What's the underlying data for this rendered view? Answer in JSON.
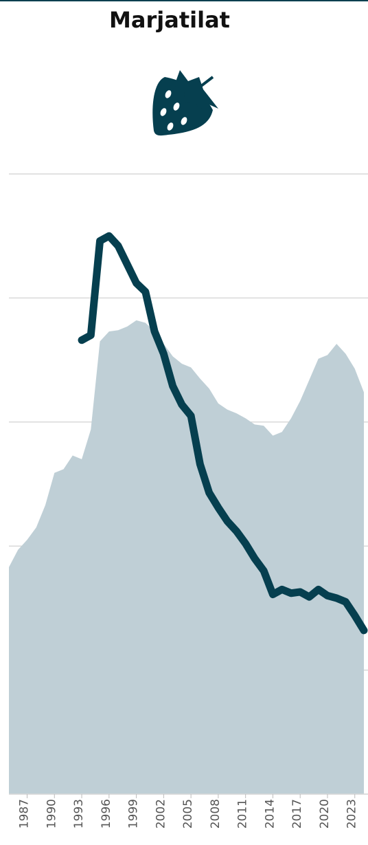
{
  "chart_data": {
    "type": "line",
    "title": "Marjatilat",
    "x": [
      1985,
      1986,
      1987,
      1988,
      1989,
      1990,
      1991,
      1992,
      1993,
      1994,
      1995,
      1996,
      1997,
      1998,
      1999,
      2000,
      2001,
      2002,
      2003,
      2004,
      2005,
      2006,
      2007,
      2008,
      2009,
      2010,
      2011,
      2012,
      2013,
      2014,
      2015,
      2016,
      2017,
      2018,
      2019,
      2020,
      2021,
      2022,
      2023,
      2024
    ],
    "series": [
      {
        "type": "area",
        "color": "#bfcfd6",
        "values": [
          1.83,
          1.97,
          2.05,
          2.15,
          2.33,
          2.59,
          2.62,
          2.73,
          2.7,
          2.94,
          3.65,
          3.73,
          3.74,
          3.77,
          3.82,
          3.8,
          3.73,
          3.63,
          3.53,
          3.47,
          3.44,
          3.35,
          3.27,
          3.15,
          3.1,
          3.07,
          3.03,
          2.98,
          2.97,
          2.89,
          2.92,
          3.03,
          3.17,
          3.34,
          3.51,
          3.54,
          3.63,
          3.55,
          3.43,
          3.24
        ]
      },
      {
        "type": "line",
        "color": "#063f4f",
        "values": [
          null,
          null,
          null,
          null,
          null,
          null,
          null,
          null,
          3.66,
          3.7,
          4.46,
          4.5,
          4.42,
          4.27,
          4.12,
          4.05,
          3.73,
          3.55,
          3.29,
          3.14,
          3.05,
          2.66,
          2.43,
          2.31,
          2.2,
          2.12,
          2.02,
          1.9,
          1.8,
          1.61,
          1.65,
          1.62,
          1.63,
          1.59,
          1.65,
          1.6,
          1.58,
          1.55,
          1.44,
          1.32
        ]
      }
    ],
    "xlim": [
      1985,
      2024
    ],
    "xticks": [
      1987,
      1990,
      1993,
      1996,
      1999,
      2002,
      2005,
      2008,
      2011,
      2014,
      2017,
      2020,
      2023
    ],
    "ylim": [
      0,
      5
    ],
    "yticks": [
      0,
      1,
      2,
      3,
      4,
      5
    ],
    "grid": true
  }
}
